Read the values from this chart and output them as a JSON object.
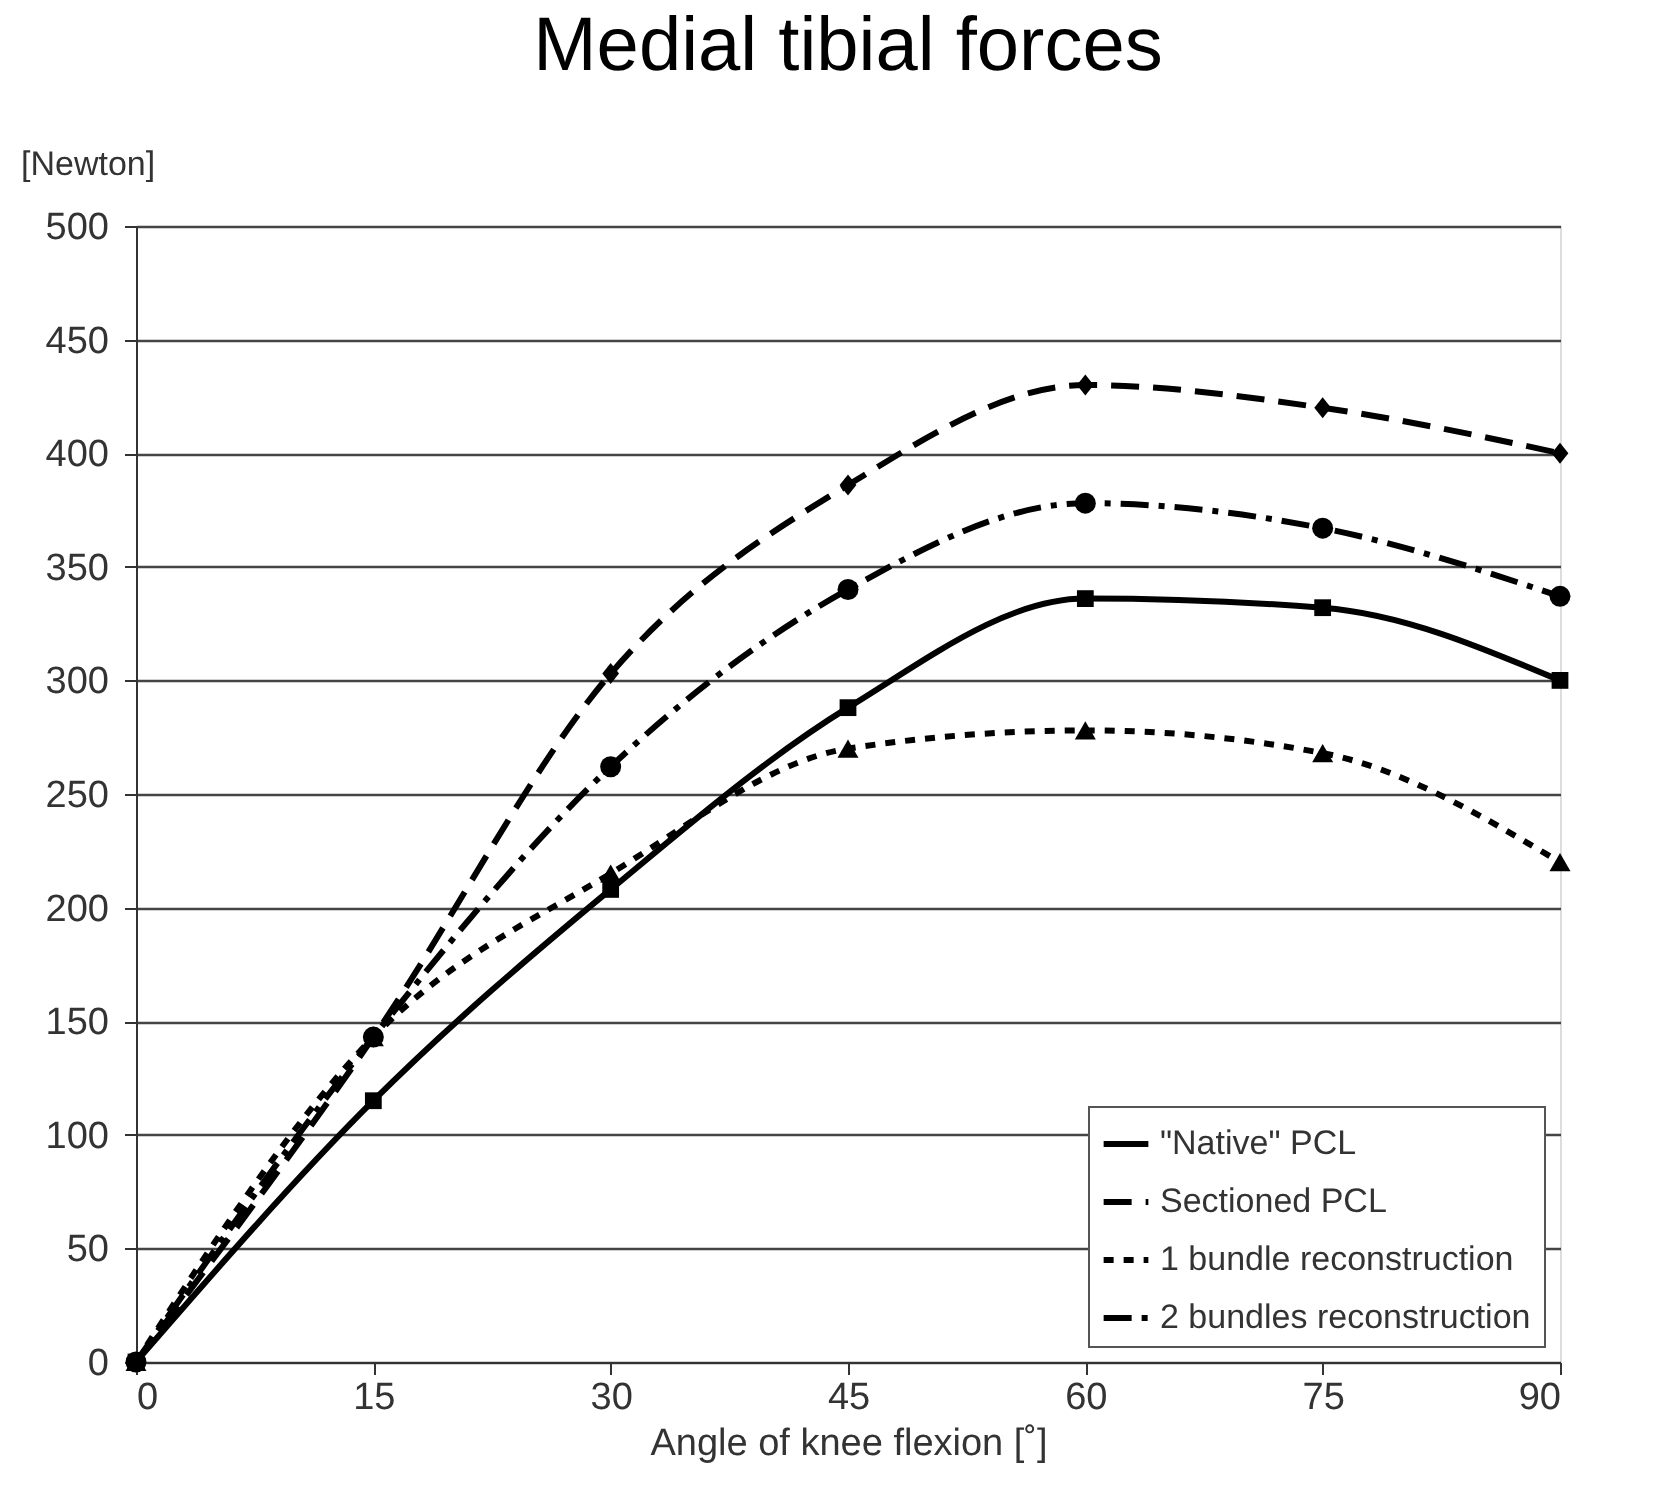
{
  "chart_data": {
    "type": "line",
    "title": "Medial tibial forces",
    "xlabel": "Angle of knee flexion [˚]",
    "ylabel": "[Newton]",
    "x": [
      0,
      15,
      30,
      45,
      60,
      75,
      90
    ],
    "series": [
      {
        "name": "\"Native\" PCL",
        "color": "#000000",
        "marker": "square",
        "line_style": "solid",
        "values": [
          0,
          115,
          208,
          288,
          336,
          332,
          300
        ]
      },
      {
        "name": "Sectioned PCL",
        "color": "#000000",
        "marker": "diamond",
        "line_style": "dashed",
        "values": [
          0,
          143,
          303,
          386,
          430,
          420,
          400
        ]
      },
      {
        "name": "1 bundle reconstruction",
        "color": "#000000",
        "marker": "triangle",
        "line_style": "dotted",
        "values": [
          0,
          143,
          215,
          270,
          278,
          268,
          220
        ]
      },
      {
        "name": "2 bundles reconstruction",
        "color": "#000000",
        "marker": "circle",
        "line_style": "dashdot",
        "values": [
          0,
          143,
          262,
          340,
          378,
          367,
          337
        ]
      }
    ],
    "xlim": [
      0,
      90
    ],
    "xticks": [
      0,
      15,
      30,
      45,
      60,
      75,
      90
    ],
    "ylim": [
      0,
      500
    ],
    "yticks": [
      0,
      50,
      100,
      150,
      200,
      250,
      300,
      350,
      400,
      450,
      500
    ],
    "grid": "y",
    "legend": "bottom right"
  }
}
